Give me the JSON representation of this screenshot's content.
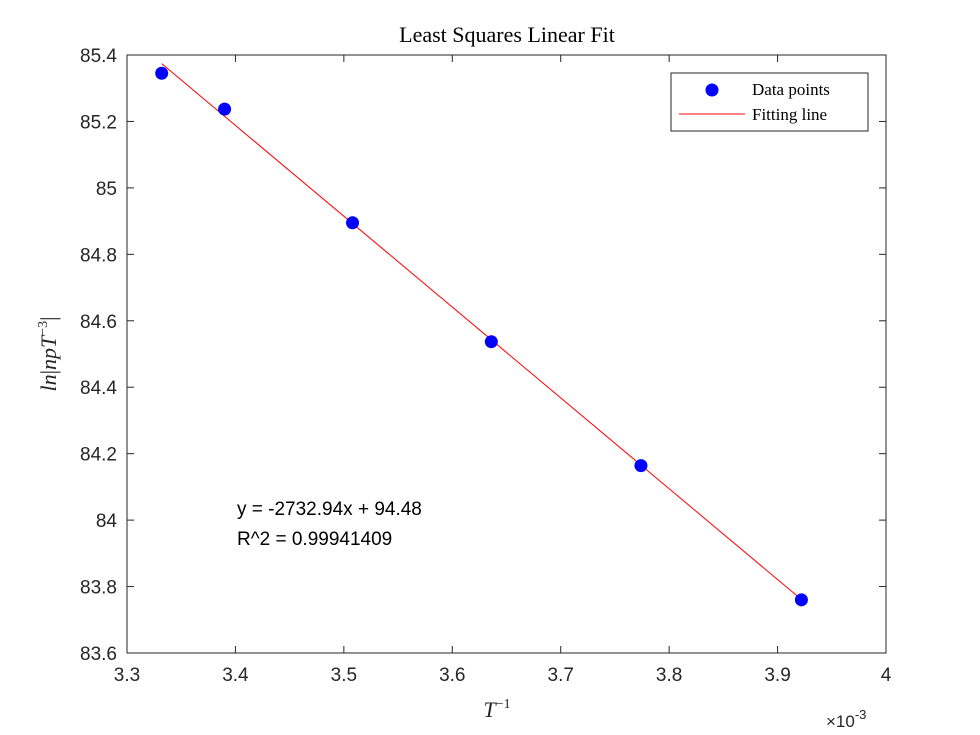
{
  "chart_data": {
    "type": "scatter",
    "title": "Least Squares Linear Fit",
    "xlabel": "T^{-1}",
    "ylabel": "ln|npT^{-3}|",
    "x_exponent_label": "×10",
    "x_exponent_value": "-3",
    "xlim": [
      0.0033,
      0.004
    ],
    "ylim": [
      83.6,
      85.4
    ],
    "x_ticks": [
      0.0033,
      0.0034,
      0.0035,
      0.0036,
      0.0037,
      0.0038,
      0.0039,
      0.004
    ],
    "x_tick_labels": [
      "3.3",
      "3.4",
      "3.5",
      "3.6",
      "3.7",
      "3.8",
      "3.9",
      "4"
    ],
    "y_ticks": [
      83.6,
      83.8,
      84.0,
      84.2,
      84.4,
      84.6,
      84.8,
      85.0,
      85.2,
      85.4
    ],
    "y_tick_labels": [
      "83.6",
      "83.8",
      "84",
      "84.2",
      "84.4",
      "84.6",
      "84.8",
      "85",
      "85.2",
      "85.4"
    ],
    "grid": false,
    "legend_position": "top-right",
    "series": [
      {
        "name": "Data points",
        "kind": "scatter",
        "color": "#0000ff",
        "x": [
          0.003332,
          0.00339,
          0.003508,
          0.003636,
          0.003774,
          0.003922
        ],
        "y": [
          85.345,
          85.237,
          84.895,
          84.537,
          84.164,
          83.76
        ]
      },
      {
        "name": "Fitting line",
        "kind": "line",
        "color": "#ff0000",
        "x": [
          0.003332,
          0.003922
        ],
        "y": [
          85.374,
          83.761
        ]
      }
    ],
    "annotations": [
      "y = -2732.94x + 94.48",
      "R^2 = 0.99941409"
    ]
  }
}
